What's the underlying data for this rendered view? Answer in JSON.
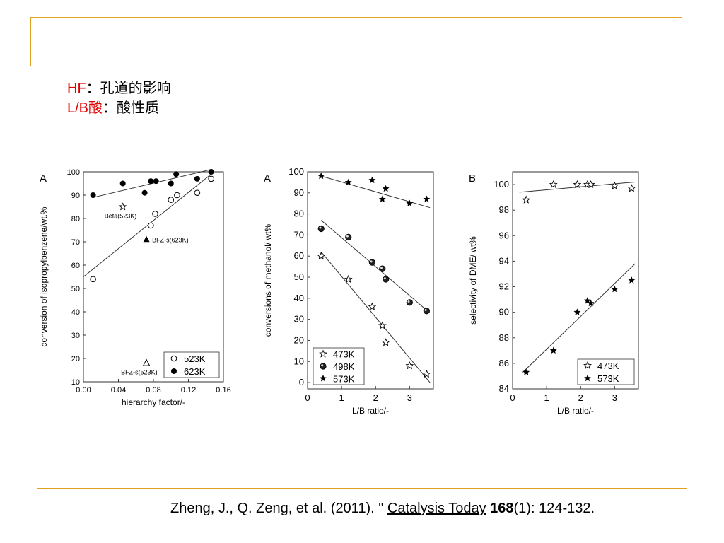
{
  "colors": {
    "accent_line": "#e0a020",
    "highlight_text": "#e00000",
    "text": "#000000"
  },
  "heading": {
    "line1_red": "HF",
    "line1_rest": "：孔道的影响",
    "line2_red1": "L/B",
    "line2_red2": "酸",
    "line2_rest": "：酸性质"
  },
  "citation": {
    "prefix": "Zheng, J., Q. Zeng, et al. (2011). \" ",
    "journal": "Catalysis Today",
    "volume": "168",
    "rest": "(1): 124-132."
  },
  "chart_data": [
    {
      "type": "scatter",
      "panel_label": "A",
      "xlabel": "hierarchy factor/-",
      "ylabel": "conversion of isopropylbenzene/wt.%",
      "xlim": [
        0.0,
        0.16
      ],
      "ylim": [
        10,
        100
      ],
      "xticks": [
        "0.00",
        "0.04",
        "0.08",
        "0.12",
        "0.16"
      ],
      "yticks": [
        "10",
        "20",
        "30",
        "40",
        "50",
        "60",
        "70",
        "80",
        "90",
        "100"
      ],
      "legend_position": "bottom-right",
      "series": [
        {
          "name": "523K",
          "marker": "open-circle",
          "x": [
            0.011,
            0.077,
            0.082,
            0.1,
            0.107,
            0.13,
            0.146
          ],
          "y": [
            54,
            77,
            82,
            88,
            90,
            91,
            97
          ]
        },
        {
          "name": "623K",
          "marker": "filled-circle",
          "x": [
            0.011,
            0.045,
            0.07,
            0.077,
            0.083,
            0.1,
            0.106,
            0.13,
            0.146
          ],
          "y": [
            90,
            95,
            91,
            96,
            96,
            95,
            99,
            97,
            100
          ]
        }
      ],
      "fit_lines": [
        {
          "x": [
            0.0,
            0.146
          ],
          "y": [
            55,
            99
          ]
        },
        {
          "x": [
            0.011,
            0.146
          ],
          "y": [
            89,
            101
          ]
        }
      ],
      "annotations": [
        {
          "text": "Beta(523K)",
          "marker": "open-star",
          "x": 0.045,
          "y": 85
        },
        {
          "text": "BFZ-s(623K)",
          "marker": "filled-triangle",
          "x": 0.072,
          "y": 71
        },
        {
          "text": "BFZ-s(523K)",
          "marker": "open-triangle",
          "x": 0.072,
          "y": 18
        }
      ]
    },
    {
      "type": "scatter",
      "panel_label": "A",
      "xlabel": "L/B ratio/-",
      "ylabel": "conversions of methanol/ wt%",
      "xlim": [
        0,
        3.7
      ],
      "ylim": [
        -3,
        100
      ],
      "xticks": [
        "0",
        "1",
        "2",
        "3"
      ],
      "yticks": [
        "0",
        "10",
        "20",
        "30",
        "40",
        "50",
        "60",
        "70",
        "80",
        "90",
        "100"
      ],
      "legend_position": "bottom-left",
      "series": [
        {
          "name": "473K",
          "marker": "open-star",
          "x": [
            0.4,
            1.2,
            1.9,
            2.2,
            2.3,
            3.0,
            3.5
          ],
          "y": [
            60,
            49,
            36,
            27,
            19,
            8,
            4
          ]
        },
        {
          "name": "498K",
          "marker": "half-circle",
          "x": [
            0.4,
            1.2,
            1.9,
            2.2,
            2.3,
            3.0,
            3.5
          ],
          "y": [
            73,
            69,
            57,
            54,
            49,
            38,
            34
          ]
        },
        {
          "name": "573K",
          "marker": "filled-star",
          "x": [
            0.4,
            1.2,
            1.9,
            2.2,
            2.3,
            3.0,
            3.5
          ],
          "y": [
            98,
            95,
            96,
            87,
            92,
            85,
            87
          ]
        }
      ],
      "fit_lines": [
        {
          "x": [
            0.4,
            3.6
          ],
          "y": [
            98,
            83
          ]
        },
        {
          "x": [
            0.4,
            3.6
          ],
          "y": [
            77,
            33
          ]
        },
        {
          "x": [
            0.4,
            3.6
          ],
          "y": [
            62,
            0
          ]
        }
      ]
    },
    {
      "type": "scatter",
      "panel_label": "B",
      "xlabel": "L/B ratio/-",
      "ylabel": "selectivity of DME/ wt%",
      "xlim": [
        0,
        3.7
      ],
      "ylim": [
        84,
        101
      ],
      "xticks": [
        "0",
        "1",
        "2",
        "3"
      ],
      "yticks": [
        "84",
        "86",
        "88",
        "90",
        "92",
        "94",
        "96",
        "98",
        "100"
      ],
      "legend_position": "bottom-right",
      "series": [
        {
          "name": "473K",
          "marker": "open-star",
          "x": [
            0.4,
            1.2,
            1.9,
            2.2,
            2.3,
            3.0,
            3.5
          ],
          "y": [
            98.8,
            100,
            100,
            100,
            100,
            99.9,
            99.7
          ]
        },
        {
          "name": "573K",
          "marker": "filled-star",
          "x": [
            0.4,
            1.2,
            1.9,
            2.2,
            2.3,
            3.0,
            3.5
          ],
          "y": [
            85.3,
            87,
            90,
            90.9,
            90.7,
            91.8,
            92.5
          ]
        }
      ],
      "fit_lines": [
        {
          "x": [
            0.2,
            3.6
          ],
          "y": [
            99.4,
            100.2
          ]
        },
        {
          "x": [
            0.3,
            3.6
          ],
          "y": [
            85.3,
            93.8
          ]
        }
      ]
    }
  ]
}
